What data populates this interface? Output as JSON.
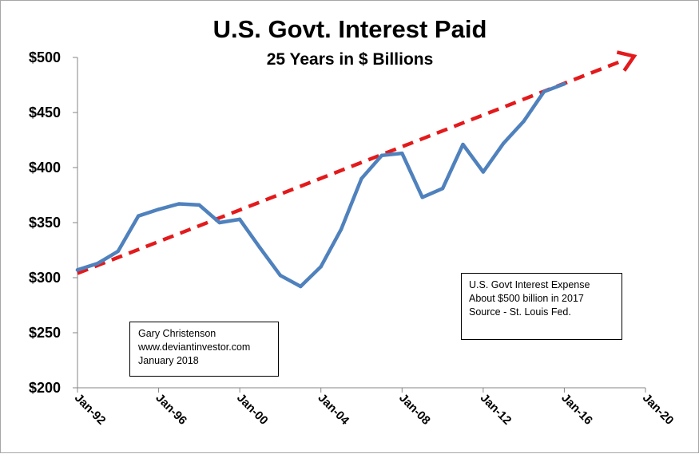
{
  "chart_data": {
    "type": "line",
    "title": "U.S. Govt. Interest Paid",
    "subtitle": "25 Years in $ Billions",
    "x_ticks": [
      "Jan-92",
      "Jan-96",
      "Jan-00",
      "Jan-04",
      "Jan-08",
      "Jan-12",
      "Jan-16",
      "Jan-20"
    ],
    "y_ticks": [
      "$200",
      "$250",
      "$300",
      "$350",
      "$400",
      "$450",
      "$500"
    ],
    "ylim": [
      200,
      500
    ],
    "xlim": [
      "1992-01",
      "2020-01"
    ],
    "grid": false,
    "series": [
      {
        "color": "#4f81bd",
        "points": [
          {
            "x": "1992-01",
            "y": 307
          },
          {
            "x": "1993-01",
            "y": 313
          },
          {
            "x": "1994-01",
            "y": 324
          },
          {
            "x": "1995-01",
            "y": 356
          },
          {
            "x": "1996-01",
            "y": 362
          },
          {
            "x": "1997-01",
            "y": 367
          },
          {
            "x": "1998-01",
            "y": 366
          },
          {
            "x": "1999-01",
            "y": 350
          },
          {
            "x": "2000-01",
            "y": 353
          },
          {
            "x": "2001-01",
            "y": 327
          },
          {
            "x": "2002-01",
            "y": 302
          },
          {
            "x": "2003-01",
            "y": 292
          },
          {
            "x": "2004-01",
            "y": 310
          },
          {
            "x": "2005-01",
            "y": 344
          },
          {
            "x": "2006-01",
            "y": 390
          },
          {
            "x": "2007-01",
            "y": 411
          },
          {
            "x": "2008-01",
            "y": 413
          },
          {
            "x": "2009-01",
            "y": 373
          },
          {
            "x": "2010-01",
            "y": 381
          },
          {
            "x": "2011-01",
            "y": 421
          },
          {
            "x": "2012-01",
            "y": 396
          },
          {
            "x": "2013-01",
            "y": 422
          },
          {
            "x": "2014-01",
            "y": 442
          },
          {
            "x": "2015-01",
            "y": 469
          },
          {
            "x": "2016-01",
            "y": 476
          }
        ]
      }
    ],
    "trend_arrow": {
      "color": "#e31a1c",
      "style": "dashed",
      "start": {
        "x": "1992-01",
        "y": 304
      },
      "end": {
        "x": "2019-01",
        "y": 498
      }
    }
  },
  "annotations": {
    "author": [
      "Gary Christenson",
      "www.deviantinvestor.com",
      "January 2018"
    ],
    "expense": [
      "U.S. Govt Interest Expense",
      "About $500 billion in 2017",
      "Source - St. Louis Fed."
    ]
  }
}
